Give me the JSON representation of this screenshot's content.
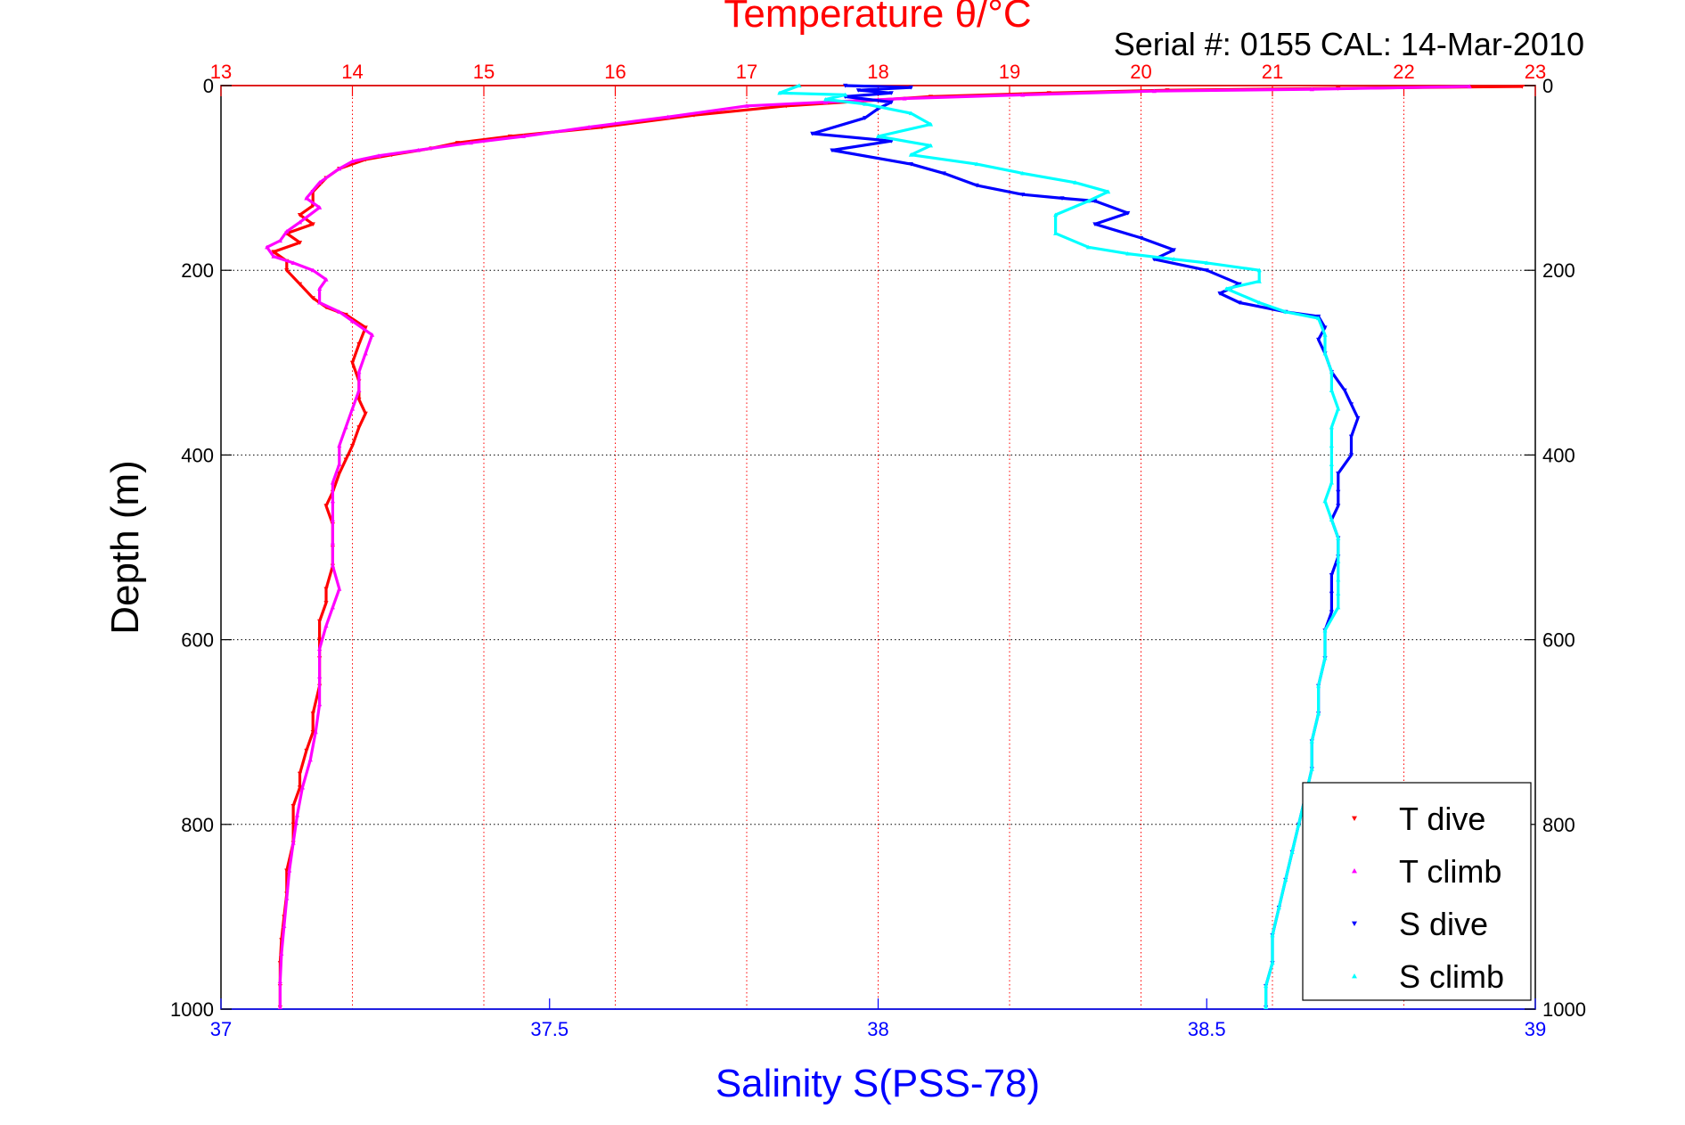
{
  "chart_data": {
    "type": "scatter",
    "title": "Temperature θ/°C",
    "subtitle": "Serial #: 0155  CAL: 14-Mar-2010",
    "ylabel": "Depth (m)",
    "xlabel_bottom": "Salinity S(PSS-78)",
    "xlabel_top": "Temperature θ/°C",
    "y_reversed": true,
    "ylim": [
      0,
      1000
    ],
    "yticks": [
      "0",
      "200",
      "400",
      "600",
      "800",
      "1000"
    ],
    "xlim_salinity": [
      37,
      39
    ],
    "xticks_salinity": [
      "37",
      "37.5",
      "38",
      "38.5",
      "39"
    ],
    "xlim_temperature": [
      13,
      23
    ],
    "xticks_temperature": [
      "13",
      "14",
      "15",
      "16",
      "17",
      "18",
      "19",
      "20",
      "21",
      "22",
      "23"
    ],
    "grid": true,
    "legend_position": "bottom-right",
    "colors": {
      "temperature_axis": "#ff0000",
      "salinity_axis": "#0000ff",
      "t_dive": "#ff0000",
      "t_climb": "#ff00ff",
      "s_dive": "#0000ff",
      "s_climb": "#00ffff"
    },
    "series": [
      {
        "name": "T dive",
        "axis": "temperature",
        "marker": "triangle-down",
        "color": "#ff0000",
        "points": [
          [
            22.9,
            1
          ],
          [
            21.5,
            3
          ],
          [
            20.2,
            5
          ],
          [
            19.3,
            8
          ],
          [
            18.4,
            12
          ],
          [
            17.3,
            22
          ],
          [
            16.6,
            32
          ],
          [
            15.9,
            45
          ],
          [
            15.2,
            55
          ],
          [
            14.8,
            62
          ],
          [
            14.6,
            68
          ],
          [
            14.3,
            75
          ],
          [
            14.1,
            80
          ],
          [
            13.9,
            90
          ],
          [
            13.8,
            100
          ],
          [
            13.7,
            115
          ],
          [
            13.7,
            130
          ],
          [
            13.6,
            140
          ],
          [
            13.7,
            150
          ],
          [
            13.5,
            160
          ],
          [
            13.6,
            170
          ],
          [
            13.4,
            180
          ],
          [
            13.5,
            190
          ],
          [
            13.5,
            200
          ],
          [
            13.6,
            215
          ],
          [
            13.7,
            230
          ],
          [
            13.8,
            240
          ],
          [
            13.95,
            248
          ],
          [
            14.1,
            262
          ],
          [
            14.05,
            280
          ],
          [
            14.0,
            300
          ],
          [
            14.05,
            320
          ],
          [
            14.05,
            340
          ],
          [
            14.1,
            355
          ],
          [
            14.05,
            370
          ],
          [
            14.0,
            390
          ],
          [
            13.95,
            405
          ],
          [
            13.9,
            420
          ],
          [
            13.85,
            440
          ],
          [
            13.8,
            455
          ],
          [
            13.85,
            475
          ],
          [
            13.85,
            500
          ],
          [
            13.85,
            520
          ],
          [
            13.8,
            545
          ],
          [
            13.8,
            560
          ],
          [
            13.75,
            580
          ],
          [
            13.75,
            600
          ],
          [
            13.75,
            620
          ],
          [
            13.75,
            650
          ],
          [
            13.7,
            680
          ],
          [
            13.7,
            700
          ],
          [
            13.65,
            720
          ],
          [
            13.6,
            745
          ],
          [
            13.6,
            760
          ],
          [
            13.55,
            780
          ],
          [
            13.55,
            800
          ],
          [
            13.55,
            820
          ],
          [
            13.5,
            850
          ],
          [
            13.5,
            875
          ],
          [
            13.48,
            900
          ],
          [
            13.46,
            925
          ],
          [
            13.45,
            950
          ],
          [
            13.45,
            975
          ],
          [
            13.45,
            998
          ]
        ]
      },
      {
        "name": "T climb",
        "axis": "temperature",
        "marker": "triangle-up",
        "color": "#ff00ff",
        "points": [
          [
            22.5,
            1
          ],
          [
            21.3,
            4
          ],
          [
            20.1,
            6
          ],
          [
            19.1,
            10
          ],
          [
            18.2,
            14
          ],
          [
            17.6,
            18
          ],
          [
            17.0,
            22
          ],
          [
            16.4,
            34
          ],
          [
            15.8,
            45
          ],
          [
            15.3,
            55
          ],
          [
            14.9,
            62
          ],
          [
            14.5,
            70
          ],
          [
            14.2,
            76
          ],
          [
            14.0,
            82
          ],
          [
            13.9,
            90
          ],
          [
            13.75,
            105
          ],
          [
            13.65,
            122
          ],
          [
            13.75,
            132
          ],
          [
            13.6,
            148
          ],
          [
            13.5,
            158
          ],
          [
            13.45,
            168
          ],
          [
            13.35,
            175
          ],
          [
            13.4,
            185
          ],
          [
            13.55,
            192
          ],
          [
            13.7,
            200
          ],
          [
            13.8,
            210
          ],
          [
            13.75,
            220
          ],
          [
            13.75,
            235
          ],
          [
            13.9,
            245
          ],
          [
            14.0,
            255
          ],
          [
            14.15,
            270
          ],
          [
            14.1,
            290
          ],
          [
            14.05,
            310
          ],
          [
            14.05,
            330
          ],
          [
            14.0,
            350
          ],
          [
            13.95,
            370
          ],
          [
            13.9,
            390
          ],
          [
            13.9,
            410
          ],
          [
            13.85,
            430
          ],
          [
            13.85,
            450
          ],
          [
            13.85,
            470
          ],
          [
            13.85,
            495
          ],
          [
            13.85,
            520
          ],
          [
            13.9,
            545
          ],
          [
            13.85,
            565
          ],
          [
            13.8,
            585
          ],
          [
            13.75,
            610
          ],
          [
            13.75,
            640
          ],
          [
            13.75,
            670
          ],
          [
            13.72,
            700
          ],
          [
            13.68,
            730
          ],
          [
            13.62,
            760
          ],
          [
            13.58,
            790
          ],
          [
            13.55,
            820
          ],
          [
            13.52,
            850
          ],
          [
            13.5,
            880
          ],
          [
            13.48,
            910
          ],
          [
            13.46,
            940
          ],
          [
            13.45,
            970
          ],
          [
            13.45,
            998
          ]
        ]
      },
      {
        "name": "S dive",
        "axis": "salinity",
        "marker": "triangle-down",
        "color": "#0000ff",
        "points": [
          [
            37.95,
            0
          ],
          [
            38.05,
            2
          ],
          [
            37.97,
            5
          ],
          [
            38.02,
            8
          ],
          [
            37.95,
            12
          ],
          [
            38.02,
            18
          ],
          [
            38.0,
            25
          ],
          [
            37.98,
            35
          ],
          [
            37.9,
            52
          ],
          [
            38.02,
            60
          ],
          [
            37.93,
            70
          ],
          [
            38.05,
            85
          ],
          [
            38.1,
            95
          ],
          [
            38.15,
            108
          ],
          [
            38.22,
            118
          ],
          [
            38.28,
            122
          ],
          [
            38.33,
            125
          ],
          [
            38.38,
            138
          ],
          [
            38.33,
            150
          ],
          [
            38.4,
            165
          ],
          [
            38.45,
            178
          ],
          [
            38.42,
            188
          ],
          [
            38.5,
            200
          ],
          [
            38.55,
            215
          ],
          [
            38.52,
            225
          ],
          [
            38.55,
            235
          ],
          [
            38.62,
            245
          ],
          [
            38.67,
            250
          ],
          [
            38.68,
            262
          ],
          [
            38.67,
            275
          ],
          [
            38.68,
            290
          ],
          [
            38.69,
            310
          ],
          [
            38.71,
            330
          ],
          [
            38.72,
            345
          ],
          [
            38.73,
            360
          ],
          [
            38.72,
            380
          ],
          [
            38.72,
            400
          ],
          [
            38.7,
            420
          ],
          [
            38.7,
            440
          ],
          [
            38.7,
            455
          ],
          [
            38.69,
            470
          ],
          [
            38.7,
            490
          ],
          [
            38.7,
            510
          ],
          [
            38.69,
            530
          ],
          [
            38.69,
            550
          ],
          [
            38.69,
            570
          ],
          [
            38.68,
            590
          ],
          [
            38.68,
            620
          ],
          [
            38.67,
            650
          ],
          [
            38.67,
            680
          ],
          [
            38.66,
            710
          ],
          [
            38.66,
            740
          ],
          [
            38.65,
            770
          ],
          [
            38.64,
            800
          ],
          [
            38.63,
            830
          ],
          [
            38.62,
            860
          ],
          [
            38.61,
            890
          ],
          [
            38.6,
            920
          ],
          [
            38.6,
            950
          ],
          [
            38.59,
            975
          ],
          [
            38.59,
            998
          ]
        ]
      },
      {
        "name": "S climb",
        "axis": "salinity",
        "marker": "triangle-up",
        "color": "#00ffff",
        "points": [
          [
            37.88,
            0
          ],
          [
            37.85,
            8
          ],
          [
            37.95,
            10
          ],
          [
            37.92,
            15
          ],
          [
            37.98,
            20
          ],
          [
            38.05,
            30
          ],
          [
            38.08,
            42
          ],
          [
            38.0,
            55
          ],
          [
            38.08,
            65
          ],
          [
            38.05,
            75
          ],
          [
            38.15,
            85
          ],
          [
            38.22,
            95
          ],
          [
            38.3,
            105
          ],
          [
            38.35,
            115
          ],
          [
            38.32,
            125
          ],
          [
            38.27,
            140
          ],
          [
            38.27,
            160
          ],
          [
            38.32,
            175
          ],
          [
            38.38,
            182
          ],
          [
            38.45,
            188
          ],
          [
            38.5,
            192
          ],
          [
            38.58,
            200
          ],
          [
            38.58,
            212
          ],
          [
            38.53,
            220
          ],
          [
            38.58,
            235
          ],
          [
            38.62,
            245
          ],
          [
            38.67,
            252
          ],
          [
            38.68,
            270
          ],
          [
            38.68,
            290
          ],
          [
            38.69,
            310
          ],
          [
            38.69,
            330
          ],
          [
            38.7,
            350
          ],
          [
            38.69,
            370
          ],
          [
            38.69,
            390
          ],
          [
            38.69,
            410
          ],
          [
            38.69,
            430
          ],
          [
            38.68,
            450
          ],
          [
            38.69,
            470
          ],
          [
            38.7,
            490
          ],
          [
            38.7,
            515
          ],
          [
            38.7,
            535
          ],
          [
            38.7,
            550
          ],
          [
            38.7,
            565
          ],
          [
            38.68,
            590
          ],
          [
            38.68,
            620
          ],
          [
            38.67,
            650
          ],
          [
            38.67,
            680
          ],
          [
            38.66,
            710
          ],
          [
            38.66,
            740
          ],
          [
            38.65,
            770
          ],
          [
            38.64,
            800
          ],
          [
            38.63,
            830
          ],
          [
            38.62,
            860
          ],
          [
            38.61,
            890
          ],
          [
            38.6,
            920
          ],
          [
            38.6,
            950
          ],
          [
            38.59,
            975
          ],
          [
            38.59,
            998
          ]
        ]
      }
    ]
  }
}
